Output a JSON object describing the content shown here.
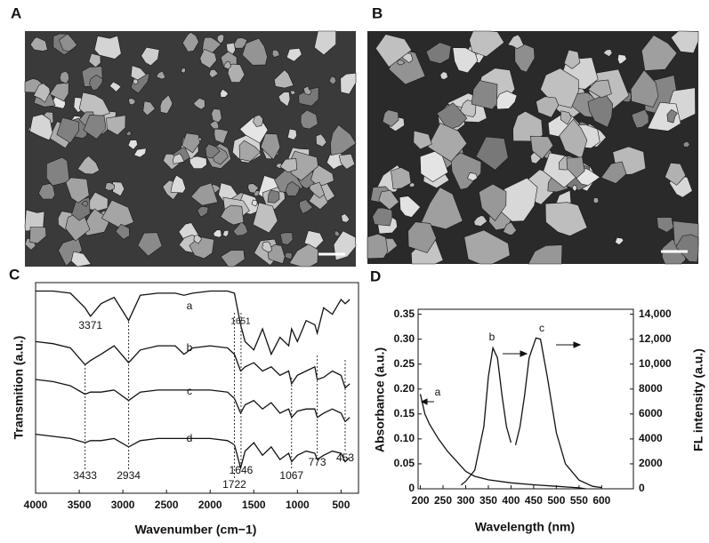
{
  "panels": {
    "a": "A",
    "b": "B",
    "c": "C",
    "d": "D"
  },
  "chart_data": [
    {
      "type": "line",
      "xlabel": "Wavenumber (cm−1)",
      "ylabel": "Transmition (a.u.)",
      "xlim": [
        4000,
        300
      ],
      "ylim": [
        0,
        100
      ],
      "xticks": [
        4000,
        3500,
        3000,
        2500,
        2000,
        1500,
        1000,
        500
      ],
      "x": [
        4000,
        3800,
        3600,
        3433,
        3371,
        3250,
        3100,
        2934,
        2800,
        2600,
        2400,
        2300,
        2200,
        2000,
        1800,
        1722,
        1651,
        1600,
        1500,
        1400,
        1300,
        1200,
        1100,
        1067,
        1000,
        900,
        800,
        773,
        700,
        600,
        500,
        453,
        400
      ],
      "series": [
        {
          "name": "a",
          "color": "#111111",
          "values": [
            96,
            96,
            95,
            88,
            84,
            90,
            93,
            82,
            94,
            95,
            95,
            94,
            95,
            96,
            96,
            95,
            80,
            72,
            68,
            78,
            66,
            74,
            70,
            78,
            72,
            82,
            80,
            76,
            88,
            85,
            92,
            90,
            92
          ]
        },
        {
          "name": "b",
          "color": "#111111",
          "values": [
            72,
            71,
            69,
            61,
            63,
            66,
            70,
            62,
            68,
            70,
            70,
            66,
            69,
            70,
            69,
            66,
            58,
            60,
            62,
            58,
            60,
            56,
            58,
            52,
            56,
            58,
            60,
            54,
            55,
            58,
            56,
            50,
            52
          ]
        },
        {
          "name": "c",
          "color": "#111111",
          "values": [
            54,
            53,
            51,
            47,
            48,
            48,
            49,
            44,
            48,
            49,
            49,
            49,
            49,
            49,
            48,
            45,
            38,
            42,
            44,
            40,
            43,
            38,
            40,
            36,
            39,
            40,
            40,
            36,
            38,
            40,
            38,
            34,
            36
          ]
        },
        {
          "name": "d",
          "color": "#111111",
          "values": [
            28,
            27,
            26,
            24,
            25,
            25,
            26,
            22,
            25,
            26,
            26,
            26,
            26,
            26,
            25,
            23,
            12,
            20,
            24,
            18,
            22,
            16,
            19,
            15,
            18,
            20,
            19,
            16,
            18,
            20,
            19,
            15,
            17
          ]
        }
      ],
      "peak_labels_a": [
        3371,
        1651
      ],
      "peak_labels": [
        3433,
        2934,
        1722,
        1646,
        1067,
        773,
        453
      ]
    },
    {
      "type": "line",
      "xlabel": "Wavelength (nm)",
      "ylabel": "Absorbance (a.u.)",
      "y2label": "FL intensity (a.u.)",
      "xlim": [
        195,
        670
      ],
      "ylim": [
        0,
        0.36
      ],
      "y2lim": [
        0,
        14400
      ],
      "xticks": [
        200,
        250,
        300,
        350,
        400,
        450,
        500,
        550,
        600
      ],
      "yticks": [
        0,
        0.05,
        {
          "value": 0.1,
          "label": "0.10"
        },
        0.15,
        {
          "value": 0.2,
          "label": "0.20"
        },
        0.25,
        {
          "value": 0.3,
          "label": "0.30"
        },
        0.35
      ],
      "y2ticks": [
        0,
        2000,
        4000,
        6000,
        8000,
        {
          "value": 10000,
          "label": "10,000"
        },
        {
          "value": 12000,
          "label": "12,000"
        },
        {
          "value": 14000,
          "label": "14,000"
        }
      ],
      "series": [
        {
          "name": "a",
          "color": "#111111",
          "x": [
            200,
            210,
            220,
            240,
            260,
            280,
            300,
            320,
            350,
            400,
            450,
            500,
            550,
            565
          ],
          "values": [
            0.19,
            0.15,
            0.13,
            0.1,
            0.075,
            0.055,
            0.035,
            0.025,
            0.018,
            0.012,
            0.008,
            0.005,
            0.002,
            0
          ]
        },
        {
          "name": "b",
          "color": "#111111",
          "axis": "y2",
          "x": [
            290,
            300,
            320,
            340,
            350,
            360,
            370,
            380,
            390,
            400
          ],
          "values": [
            300,
            600,
            1500,
            5000,
            9000,
            11300,
            10500,
            7500,
            5000,
            3700
          ]
        },
        {
          "name": "c",
          "color": "#111111",
          "axis": "y2",
          "x": [
            410,
            420,
            430,
            440,
            455,
            465,
            480,
            500,
            520,
            550,
            580,
            600
          ],
          "values": [
            3500,
            5000,
            7500,
            10500,
            12100,
            12000,
            9000,
            4500,
            2000,
            700,
            200,
            100
          ]
        }
      ]
    }
  ]
}
